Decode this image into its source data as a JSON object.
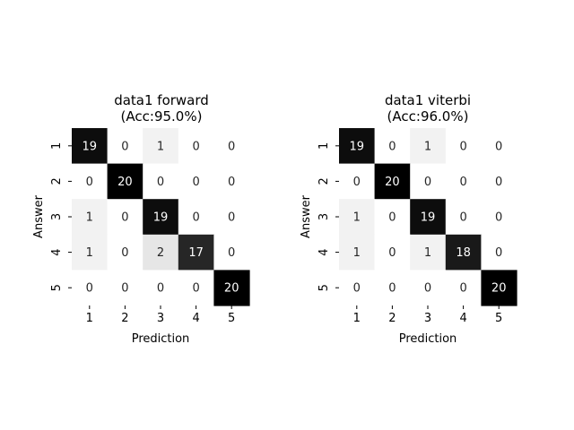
{
  "chart_data": [
    {
      "type": "heatmap",
      "title": "data1 forward",
      "subtitle": "(Acc:95.0%)",
      "xlabel": "Prediction",
      "ylabel": "Answer",
      "x_categories": [
        "1",
        "2",
        "3",
        "4",
        "5"
      ],
      "y_categories": [
        "1",
        "2",
        "3",
        "4",
        "5"
      ],
      "values": [
        [
          19,
          0,
          1,
          0,
          0
        ],
        [
          0,
          20,
          0,
          0,
          0
        ],
        [
          1,
          0,
          19,
          0,
          0
        ],
        [
          1,
          0,
          2,
          17,
          0
        ],
        [
          0,
          0,
          0,
          0,
          20
        ]
      ],
      "value_range": [
        0,
        20
      ],
      "colormap": "binary (white to black)"
    },
    {
      "type": "heatmap",
      "title": "data1 viterbi",
      "subtitle": "(Acc:96.0%)",
      "xlabel": "Prediction",
      "ylabel": "Answer",
      "x_categories": [
        "1",
        "2",
        "3",
        "4",
        "5"
      ],
      "y_categories": [
        "1",
        "2",
        "3",
        "4",
        "5"
      ],
      "values": [
        [
          19,
          0,
          1,
          0,
          0
        ],
        [
          0,
          20,
          0,
          0,
          0
        ],
        [
          1,
          0,
          19,
          0,
          0
        ],
        [
          1,
          0,
          1,
          18,
          0
        ],
        [
          0,
          0,
          0,
          0,
          20
        ]
      ],
      "value_range": [
        0,
        20
      ],
      "colormap": "binary (white to black)"
    }
  ],
  "colors": {
    "low": "#ffffff",
    "high": "#000000",
    "text_dark": "#262626",
    "text_light": "#ffffff"
  }
}
